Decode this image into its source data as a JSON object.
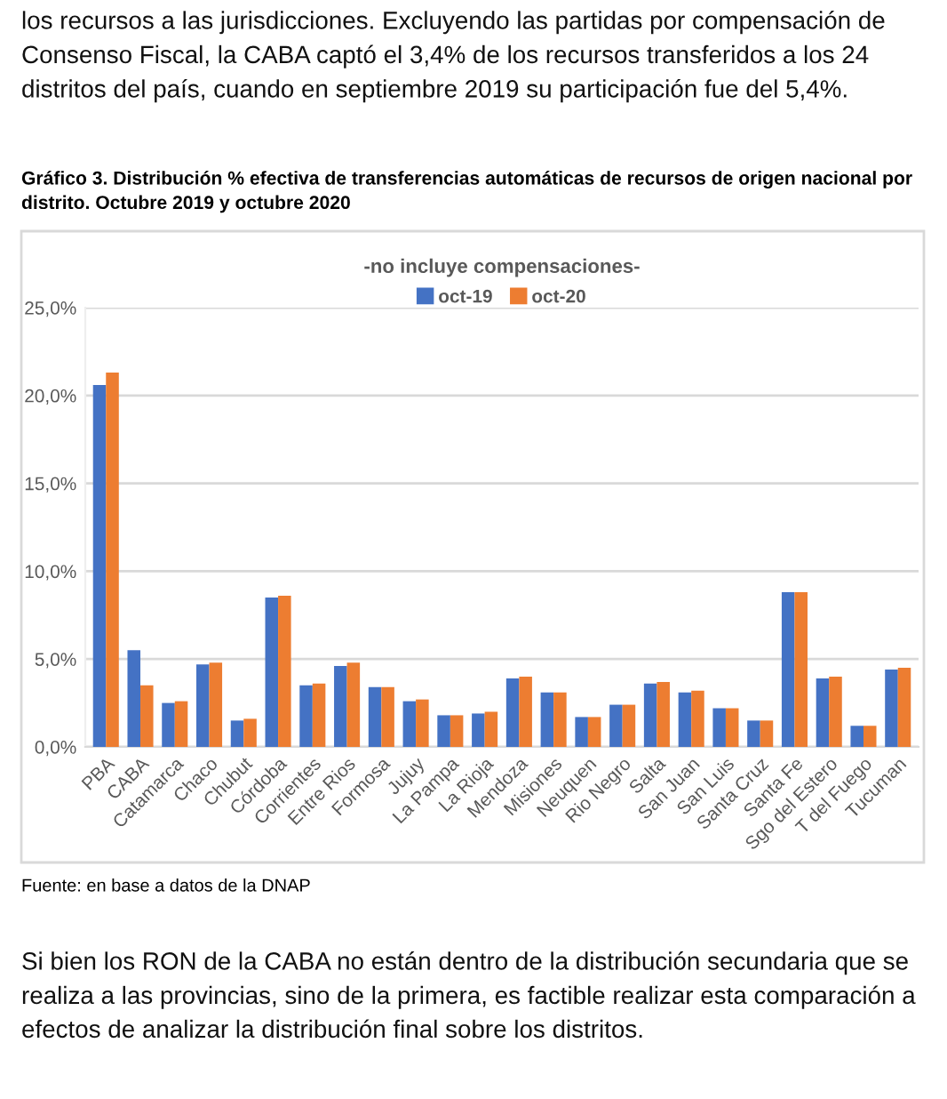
{
  "chart_data": {
    "type": "bar",
    "title": "Gráfico 3. Distribución % efectiva de transferencias automáticas de recursos de origen nacional por distrito. Octubre 2019 y octubre 2020",
    "subtitle": "-no incluye compensaciones-",
    "categories": [
      "PBA",
      "CABA",
      "Catamarca",
      "Chaco",
      "Chubut",
      "Córdoba",
      "Corrientes",
      "Entre Rios",
      "Formosa",
      "Jujuy",
      "La Pampa",
      "La Rioja",
      "Mendoza",
      "Misiones",
      "Neuquen",
      "Rio Negro",
      "Salta",
      "San Juan",
      "San Luis",
      "Santa Cruz",
      "Santa Fe",
      "Sgo del Estero",
      "T del Fuego",
      "Tucuman"
    ],
    "series": [
      {
        "name": "oct-19",
        "color": "#4472c4",
        "values": [
          20.6,
          5.5,
          2.5,
          4.7,
          1.5,
          8.5,
          3.5,
          4.6,
          3.4,
          2.6,
          1.8,
          1.9,
          3.9,
          3.1,
          1.7,
          2.4,
          3.6,
          3.1,
          2.2,
          1.5,
          8.8,
          3.9,
          1.2,
          4.4
        ]
      },
      {
        "name": "oct-20",
        "color": "#ed7d31",
        "values": [
          21.3,
          3.5,
          2.6,
          4.8,
          1.6,
          8.6,
          3.6,
          4.8,
          3.4,
          2.7,
          1.8,
          2.0,
          4.0,
          3.1,
          1.7,
          2.4,
          3.7,
          3.2,
          2.2,
          1.5,
          8.8,
          4.0,
          1.2,
          4.5
        ]
      }
    ],
    "ylim": [
      0,
      25
    ],
    "yticks": [
      {
        "value": 0,
        "label": "0,0%"
      },
      {
        "value": 5,
        "label": "5,0%"
      },
      {
        "value": 10,
        "label": "10,0%"
      },
      {
        "value": 15,
        "label": "15,0%"
      },
      {
        "value": 20,
        "label": "20,0%"
      },
      {
        "value": 25,
        "label": "25,0%"
      }
    ],
    "grid": "y",
    "legend": "top",
    "annotations": [
      "los recursos a las jurisdicciones. Excluyendo las partidas por compensación de Consenso Fiscal, la CABA captó el 3,4% de los recursos transferidos a los 24 distritos del país, cuando en septiembre 2019 su participación fue del 5,4%.",
      "Fuente: en base a datos de la DNAP",
      "Si bien los RON de la CABA no están dentro de la distribución secundaria que se realiza a las provincias, sino de la primera, es factible realizar esta comparación a efectos de analizar la distribución final sobre los distritos."
    ]
  }
}
